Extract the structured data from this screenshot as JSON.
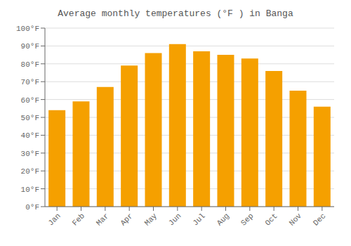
{
  "chart_data": {
    "type": "bar",
    "title": "Average monthly temperatures (°F ) in Banga",
    "categories": [
      "Jan",
      "Feb",
      "Mar",
      "Apr",
      "May",
      "Jun",
      "Jul",
      "Aug",
      "Sep",
      "Oct",
      "Nov",
      "Dec"
    ],
    "values": [
      54,
      59,
      67,
      79,
      86,
      91,
      87,
      85,
      83,
      76,
      65,
      56
    ],
    "color": "#F5A000",
    "ylim": [
      0,
      100
    ],
    "yticks": [
      {
        "value": 0,
        "label": "0°F"
      },
      {
        "value": 10,
        "label": "10°F"
      },
      {
        "value": 20,
        "label": "20°F"
      },
      {
        "value": 30,
        "label": "30°F"
      },
      {
        "value": 40,
        "label": "40°F"
      },
      {
        "value": 50,
        "label": "50°F"
      },
      {
        "value": 60,
        "label": "60°F"
      },
      {
        "value": 70,
        "label": "70°F"
      },
      {
        "value": 80,
        "label": "80°F"
      },
      {
        "value": 90,
        "label": "90°F"
      },
      {
        "value": 100,
        "label": "100°F"
      }
    ],
    "grid": true
  }
}
